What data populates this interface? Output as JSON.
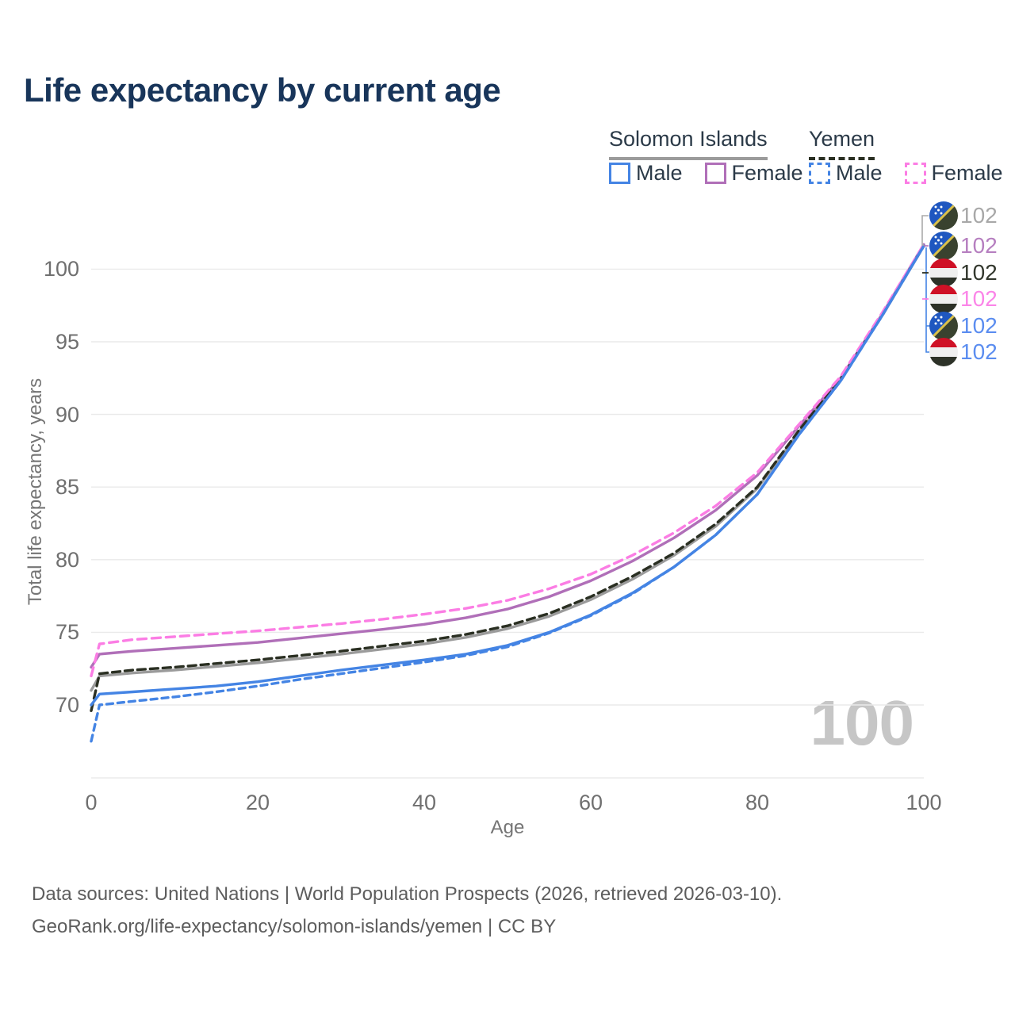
{
  "title": "Life expectancy by current age",
  "legend": {
    "groups": [
      {
        "country": "Solomon Islands",
        "line_style": "solid",
        "underline_color": "#9b9b9b",
        "items": [
          {
            "label": "Male",
            "color": "#4484e4",
            "dashed": false
          },
          {
            "label": "Female",
            "color": "#b06fb8",
            "dashed": false
          }
        ]
      },
      {
        "country": "Yemen",
        "line_style": "dashed",
        "underline_color": "#2a2f22",
        "items": [
          {
            "label": "Male",
            "color": "#4484e4",
            "dashed": true
          },
          {
            "label": "Female",
            "color": "#fb7de4",
            "dashed": true
          }
        ]
      }
    ]
  },
  "watermark_current_age": "100",
  "footer": {
    "line1": "Data sources: United Nations | World Population Prospects (2026, retrieved 2026-03-10).",
    "line2": "GeoRank.org/life-expectancy/solomon-islands/yemen | CC BY"
  },
  "chart_data": {
    "type": "line",
    "title": "Life expectancy by current age",
    "xlabel": "Age",
    "ylabel": "Total life expectancy, years",
    "x_ticks": [
      0,
      20,
      40,
      60,
      80,
      100
    ],
    "y_ticks": [
      70,
      75,
      80,
      85,
      90,
      95,
      100
    ],
    "xlim": [
      0,
      100
    ],
    "ylim": [
      65,
      102.5
    ],
    "grid": true,
    "legend_position": "top-right",
    "series": [
      {
        "name": "Solomon Islands — Both sexes",
        "country": "solomon-islands",
        "color": "#9b9b9b",
        "dash": null,
        "end_label": "102",
        "end_label_color": "#a8a8a8",
        "points": [
          [
            0,
            71.0
          ],
          [
            1,
            72.0
          ],
          [
            5,
            72.2
          ],
          [
            10,
            72.4
          ],
          [
            15,
            72.65
          ],
          [
            20,
            72.9
          ],
          [
            25,
            73.2
          ],
          [
            30,
            73.5
          ],
          [
            35,
            73.85
          ],
          [
            40,
            74.2
          ],
          [
            45,
            74.65
          ],
          [
            50,
            75.25
          ],
          [
            55,
            76.1
          ],
          [
            60,
            77.25
          ],
          [
            65,
            78.65
          ],
          [
            70,
            80.3
          ],
          [
            75,
            82.3
          ],
          [
            80,
            84.9
          ],
          [
            85,
            88.8
          ],
          [
            90,
            92.4
          ],
          [
            95,
            96.8
          ],
          [
            100,
            101.6
          ]
        ]
      },
      {
        "name": "Solomon Islands — Female",
        "country": "solomon-islands",
        "color": "#b06fb8",
        "dash": null,
        "end_label": "102",
        "end_label_color": "#b67fc0",
        "points": [
          [
            0,
            72.6
          ],
          [
            1,
            73.5
          ],
          [
            5,
            73.7
          ],
          [
            10,
            73.9
          ],
          [
            15,
            74.1
          ],
          [
            20,
            74.3
          ],
          [
            25,
            74.6
          ],
          [
            30,
            74.9
          ],
          [
            35,
            75.2
          ],
          [
            40,
            75.55
          ],
          [
            45,
            76.0
          ],
          [
            50,
            76.6
          ],
          [
            55,
            77.45
          ],
          [
            60,
            78.55
          ],
          [
            65,
            79.9
          ],
          [
            70,
            81.5
          ],
          [
            75,
            83.4
          ],
          [
            80,
            85.8
          ],
          [
            85,
            89.2
          ],
          [
            90,
            92.5
          ],
          [
            95,
            96.9
          ],
          [
            100,
            101.7
          ]
        ]
      },
      {
        "name": "Yemen — Both sexes",
        "country": "yemen",
        "color": "#2a2f22",
        "dash": "10 6",
        "end_label": "102",
        "end_label_color": "#33382e",
        "points": [
          [
            0,
            69.6
          ],
          [
            1,
            72.15
          ],
          [
            5,
            72.4
          ],
          [
            10,
            72.6
          ],
          [
            15,
            72.85
          ],
          [
            20,
            73.1
          ],
          [
            25,
            73.4
          ],
          [
            30,
            73.7
          ],
          [
            35,
            74.05
          ],
          [
            40,
            74.4
          ],
          [
            45,
            74.85
          ],
          [
            50,
            75.45
          ],
          [
            55,
            76.3
          ],
          [
            60,
            77.45
          ],
          [
            65,
            78.85
          ],
          [
            70,
            80.45
          ],
          [
            75,
            82.45
          ],
          [
            80,
            85.0
          ],
          [
            85,
            88.9
          ],
          [
            90,
            92.4
          ],
          [
            95,
            96.8
          ],
          [
            100,
            101.6
          ]
        ]
      },
      {
        "name": "Yemen — Female",
        "country": "yemen",
        "color": "#fb7de4",
        "dash": "11 7",
        "end_label": "102",
        "end_label_color": "#fb85e8",
        "points": [
          [
            0,
            72.0
          ],
          [
            1,
            74.2
          ],
          [
            5,
            74.5
          ],
          [
            10,
            74.7
          ],
          [
            15,
            74.9
          ],
          [
            20,
            75.1
          ],
          [
            25,
            75.35
          ],
          [
            30,
            75.6
          ],
          [
            35,
            75.9
          ],
          [
            40,
            76.25
          ],
          [
            45,
            76.65
          ],
          [
            50,
            77.2
          ],
          [
            55,
            78.0
          ],
          [
            60,
            79.0
          ],
          [
            65,
            80.3
          ],
          [
            70,
            81.85
          ],
          [
            75,
            83.7
          ],
          [
            80,
            86.0
          ],
          [
            85,
            89.3
          ],
          [
            90,
            92.6
          ],
          [
            95,
            97.0
          ],
          [
            100,
            101.7
          ]
        ]
      },
      {
        "name": "Solomon Islands — Male",
        "country": "solomon-islands",
        "color": "#4484e4",
        "dash": null,
        "end_label": "102",
        "end_label_color": "#5b8df0",
        "points": [
          [
            0,
            70.0
          ],
          [
            1,
            70.75
          ],
          [
            5,
            70.9
          ],
          [
            10,
            71.1
          ],
          [
            15,
            71.3
          ],
          [
            20,
            71.6
          ],
          [
            25,
            72.0
          ],
          [
            30,
            72.4
          ],
          [
            35,
            72.75
          ],
          [
            40,
            73.1
          ],
          [
            45,
            73.5
          ],
          [
            50,
            74.1
          ],
          [
            55,
            75.0
          ],
          [
            60,
            76.2
          ],
          [
            65,
            77.7
          ],
          [
            70,
            79.5
          ],
          [
            75,
            81.7
          ],
          [
            80,
            84.5
          ],
          [
            85,
            88.6
          ],
          [
            90,
            92.3
          ],
          [
            95,
            96.8
          ],
          [
            100,
            101.6
          ]
        ]
      },
      {
        "name": "Yemen — Male",
        "country": "yemen",
        "color": "#4484e4",
        "dash": "8 6",
        "end_label": "102",
        "end_label_color": "#5b8df0",
        "points": [
          [
            0,
            67.5
          ],
          [
            1,
            70.0
          ],
          [
            5,
            70.25
          ],
          [
            10,
            70.55
          ],
          [
            15,
            70.9
          ],
          [
            20,
            71.3
          ],
          [
            25,
            71.75
          ],
          [
            30,
            72.15
          ],
          [
            35,
            72.55
          ],
          [
            40,
            72.95
          ],
          [
            45,
            73.4
          ],
          [
            50,
            74.0
          ],
          [
            55,
            74.95
          ],
          [
            60,
            76.15
          ],
          [
            65,
            77.65
          ],
          [
            70,
            79.5
          ],
          [
            75,
            81.7
          ],
          [
            80,
            84.5
          ],
          [
            85,
            88.6
          ],
          [
            90,
            92.3
          ],
          [
            95,
            96.8
          ],
          [
            100,
            101.6
          ]
        ]
      }
    ]
  }
}
